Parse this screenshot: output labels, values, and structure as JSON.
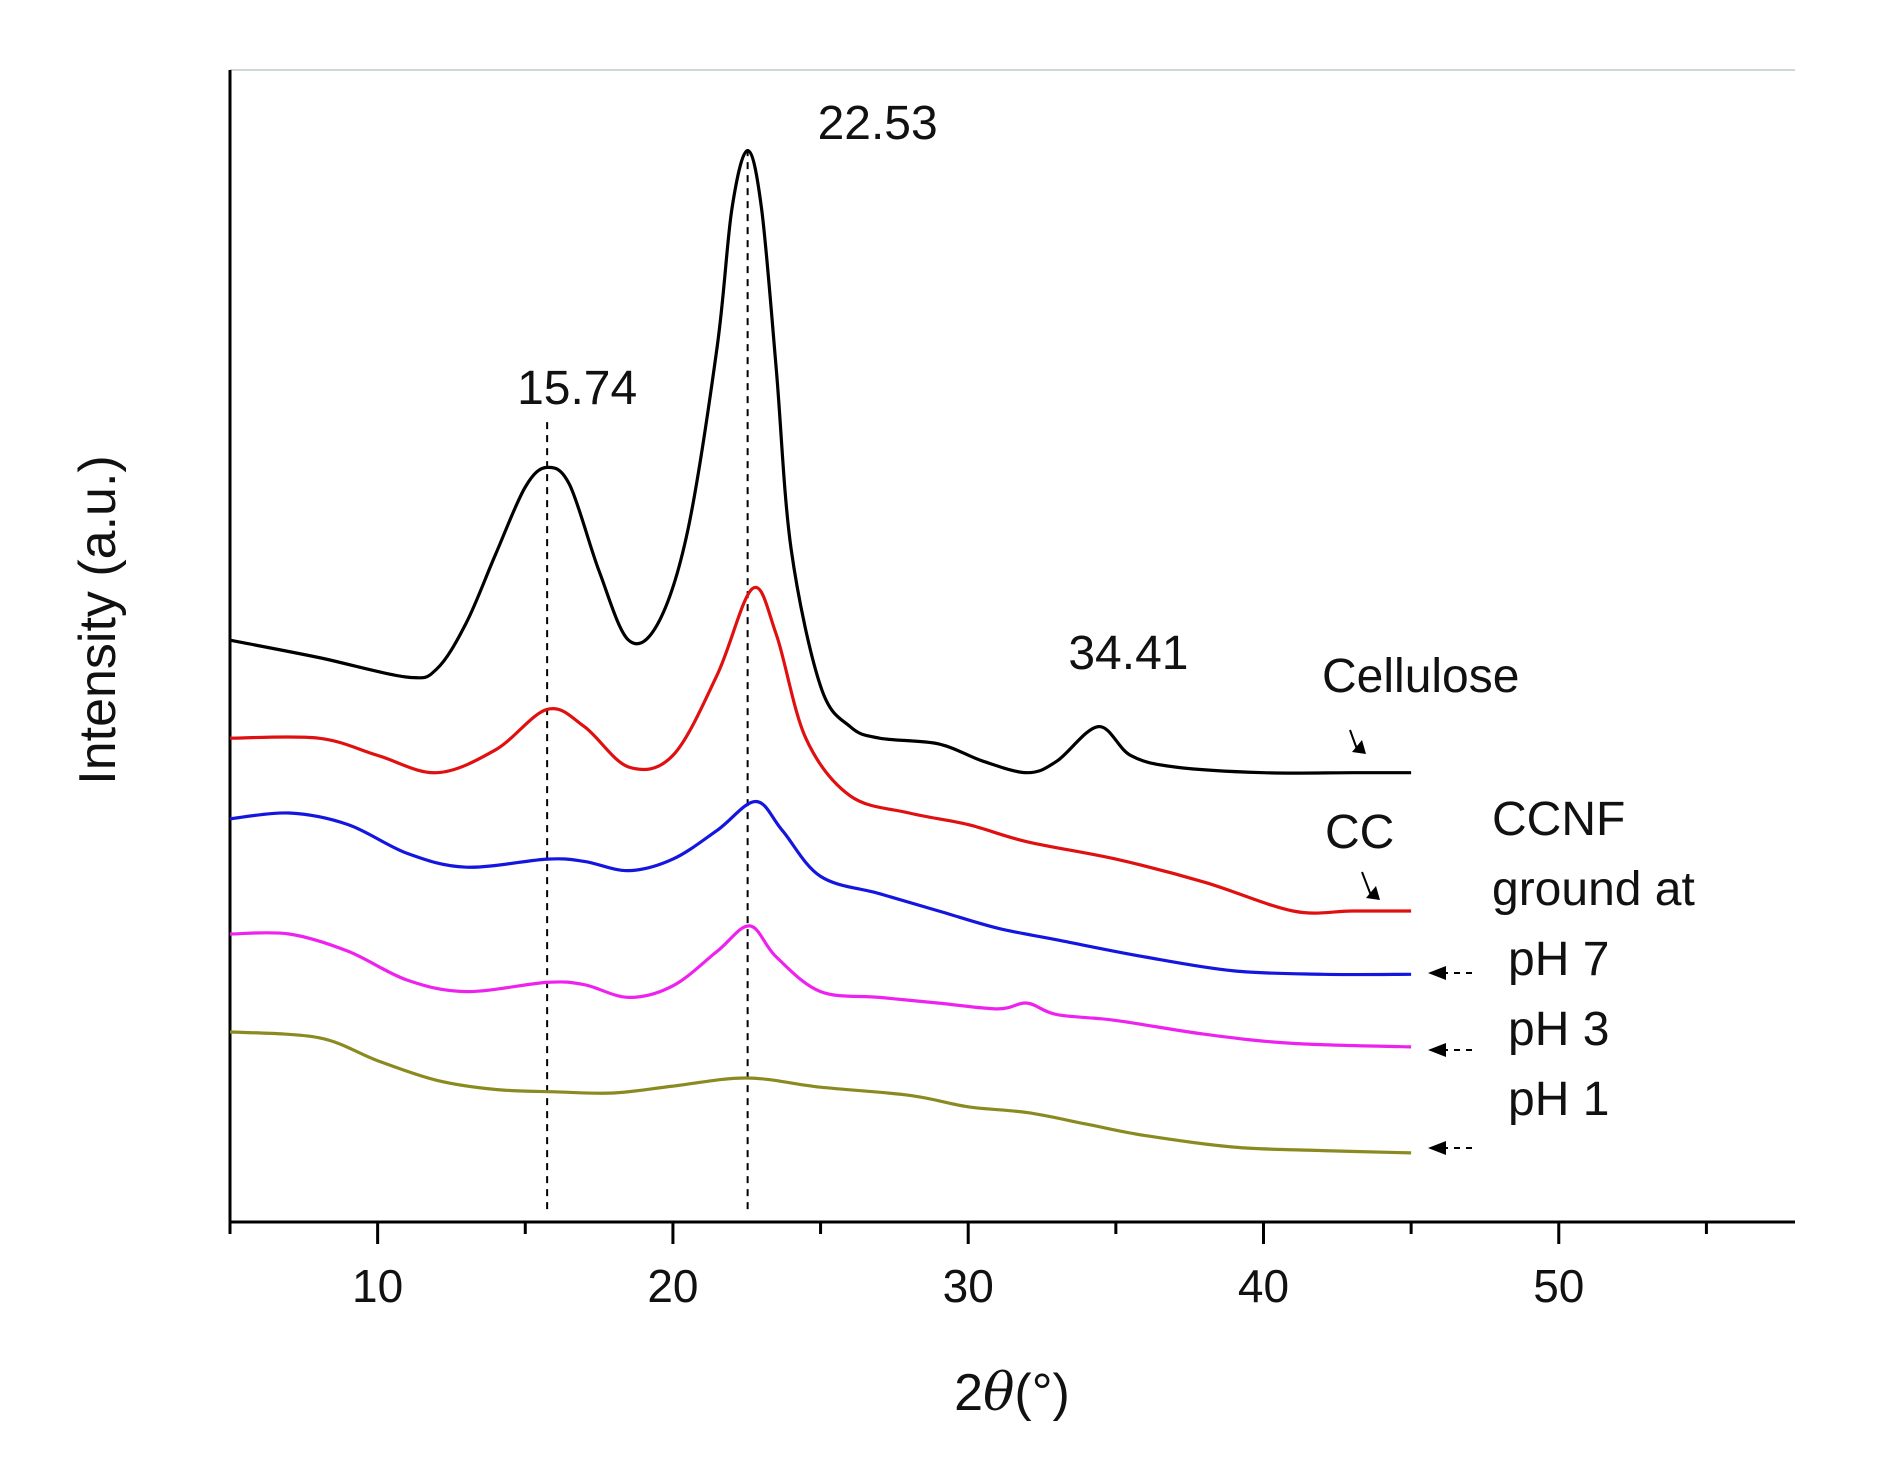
{
  "chart_data": {
    "type": "line",
    "title": "",
    "xlabel_prefix": "2",
    "xlabel_theta": "θ",
    "xlabel_suffix": "(°)",
    "ylabel": "Intensity (a.u.)",
    "xlim": [
      5,
      58
    ],
    "ylim": [
      0,
      100
    ],
    "x_ticks": [
      10,
      20,
      30,
      40,
      50
    ],
    "x_minor_ticks": [
      5,
      15,
      25,
      35,
      45,
      55
    ],
    "y_ticks_shown": false,
    "reference_lines": [
      15.74,
      22.53
    ],
    "annotations": [
      {
        "text": "15.74",
        "x": 15.74,
        "y": 71
      },
      {
        "text": "22.53",
        "x": 22.53,
        "y": 94
      },
      {
        "text": "34.41",
        "x": 34.41,
        "y": 48
      }
    ],
    "group_label": [
      "CCNF",
      "ground at"
    ],
    "series": [
      {
        "name": "Cellulose",
        "color": "#000000",
        "x": [
          5,
          8,
          11,
          12,
          13,
          14,
          15,
          15.74,
          16.5,
          17.5,
          18.5,
          19.5,
          20.5,
          21.5,
          22.0,
          22.53,
          23.0,
          23.5,
          24.0,
          25.0,
          26.0,
          27.0,
          29.0,
          30.5,
          32.0,
          33.0,
          34.41,
          35.5,
          37.0,
          40.0,
          43.0,
          45.0
        ],
        "values": [
          50.5,
          49.0,
          47.3,
          48.0,
          52.0,
          58.0,
          63.8,
          65.5,
          64.0,
          56.5,
          50.5,
          52.0,
          60.0,
          76.0,
          88.0,
          93.0,
          88.0,
          74.0,
          58.5,
          46.5,
          43.0,
          42.0,
          41.5,
          40.0,
          39.0,
          40.0,
          43.0,
          40.5,
          39.5,
          39.0,
          39.0,
          39.0
        ]
      },
      {
        "name": "CC",
        "color": "#e01010",
        "x": [
          5,
          8,
          10,
          12,
          14,
          15.74,
          17,
          18.5,
          20,
          21.5,
          22.7,
          23.5,
          24.5,
          26,
          28,
          30,
          32,
          35,
          38,
          41,
          43,
          45
        ],
        "values": [
          42.0,
          42.0,
          40.5,
          39.0,
          41.0,
          44.5,
          43.0,
          39.5,
          40.5,
          47.5,
          55.0,
          51.0,
          42.0,
          37.0,
          35.5,
          34.5,
          33.0,
          31.5,
          29.5,
          27.0,
          27.0,
          27.0
        ]
      },
      {
        "name": "pH 7",
        "color": "#1515e0",
        "x": [
          5,
          7,
          9,
          11,
          13,
          15.74,
          17,
          18.5,
          20,
          21.5,
          22.8,
          23.7,
          25,
          27,
          29,
          31,
          33,
          36,
          39,
          42,
          45
        ],
        "values": [
          35.0,
          35.5,
          34.5,
          32.0,
          30.8,
          31.5,
          31.3,
          30.5,
          31.5,
          34.0,
          36.5,
          34.0,
          30.0,
          28.5,
          27.0,
          25.5,
          24.5,
          23.0,
          21.8,
          21.5,
          21.5
        ]
      },
      {
        "name": "pH 3",
        "color": "#ee22ee",
        "x": [
          5,
          7,
          9,
          11,
          13,
          15.74,
          17,
          18.5,
          20,
          21.5,
          22.6,
          23.5,
          25,
          27,
          29,
          31,
          32,
          33,
          35,
          38,
          41,
          45
        ],
        "values": [
          25.0,
          25.0,
          23.5,
          21.0,
          20.0,
          20.8,
          20.6,
          19.5,
          20.5,
          23.5,
          25.7,
          23.0,
          20.0,
          19.5,
          19.0,
          18.5,
          19.0,
          18.0,
          17.5,
          16.3,
          15.5,
          15.2
        ]
      },
      {
        "name": "pH 1",
        "color": "#8a8a20",
        "x": [
          5,
          8,
          10,
          12,
          14,
          16,
          18,
          20,
          22.5,
          25,
          28,
          30,
          32,
          34,
          36,
          39,
          42,
          45
        ],
        "values": [
          16.5,
          16.0,
          14.0,
          12.3,
          11.5,
          11.3,
          11.2,
          11.8,
          12.5,
          11.7,
          11.0,
          10.0,
          9.5,
          8.5,
          7.5,
          6.5,
          6.2,
          6.0
        ]
      }
    ]
  }
}
